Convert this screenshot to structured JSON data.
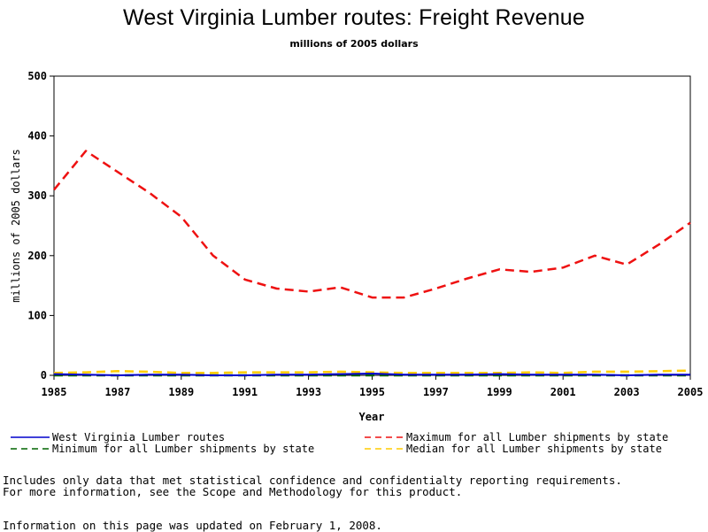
{
  "chart_data": {
    "type": "line",
    "title": "West Virginia Lumber routes: Freight Revenue",
    "subtitle": "millions of 2005 dollars",
    "xlabel": "Year",
    "ylabel": "millions of 2005 dollars",
    "xlim": [
      1985,
      2005
    ],
    "ylim": [
      0,
      500
    ],
    "x_ticks": [
      "1985",
      "1987",
      "1989",
      "1991",
      "1993",
      "1995",
      "1997",
      "1999",
      "2001",
      "2003",
      "2005"
    ],
    "y_ticks": [
      "0",
      "100",
      "200",
      "300",
      "400",
      "500"
    ],
    "grid": false,
    "legend_position": "bottom",
    "x": [
      1985,
      1986,
      1987,
      1988,
      1989,
      1990,
      1991,
      1992,
      1993,
      1994,
      1995,
      1996,
      1997,
      1998,
      1999,
      2000,
      2001,
      2002,
      2003,
      2004,
      2005
    ],
    "series": [
      {
        "name": "West Virginia Lumber routes",
        "color": "#0000cc",
        "style": "solid",
        "values": [
          2,
          1,
          0,
          1,
          1,
          0,
          0,
          1,
          1,
          2,
          3,
          1,
          1,
          1,
          2,
          1,
          1,
          1,
          0,
          1,
          1
        ]
      },
      {
        "name": "Maximum for all Lumber shipments by state",
        "color": "#ee1111",
        "style": "dashed",
        "values": [
          310,
          375,
          340,
          305,
          265,
          200,
          160,
          145,
          140,
          147,
          130,
          130,
          145,
          162,
          177,
          173,
          180,
          200,
          185,
          218,
          255
        ]
      },
      {
        "name": "Minimum for all Lumber shipments by state",
        "color": "#006400",
        "style": "dashed",
        "values": [
          0,
          0,
          0,
          0,
          0,
          0,
          0,
          0,
          0,
          0,
          0,
          0,
          0,
          0,
          0,
          0,
          0,
          0,
          0,
          0,
          0
        ]
      },
      {
        "name": "Median for all Lumber shipments by state",
        "color": "#ffcc00",
        "style": "dashed",
        "values": [
          4,
          5,
          7,
          6,
          4,
          4,
          5,
          5,
          5,
          6,
          5,
          4,
          4,
          4,
          4,
          5,
          4,
          6,
          6,
          7,
          8
        ]
      }
    ]
  },
  "footnotes": {
    "line1": "Includes only data that met statistical confidence and confidentialty reporting requirements.",
    "line2": "For more information, see the Scope and Methodology for this product.",
    "updated": "Information on this page was updated on February 1, 2008."
  }
}
